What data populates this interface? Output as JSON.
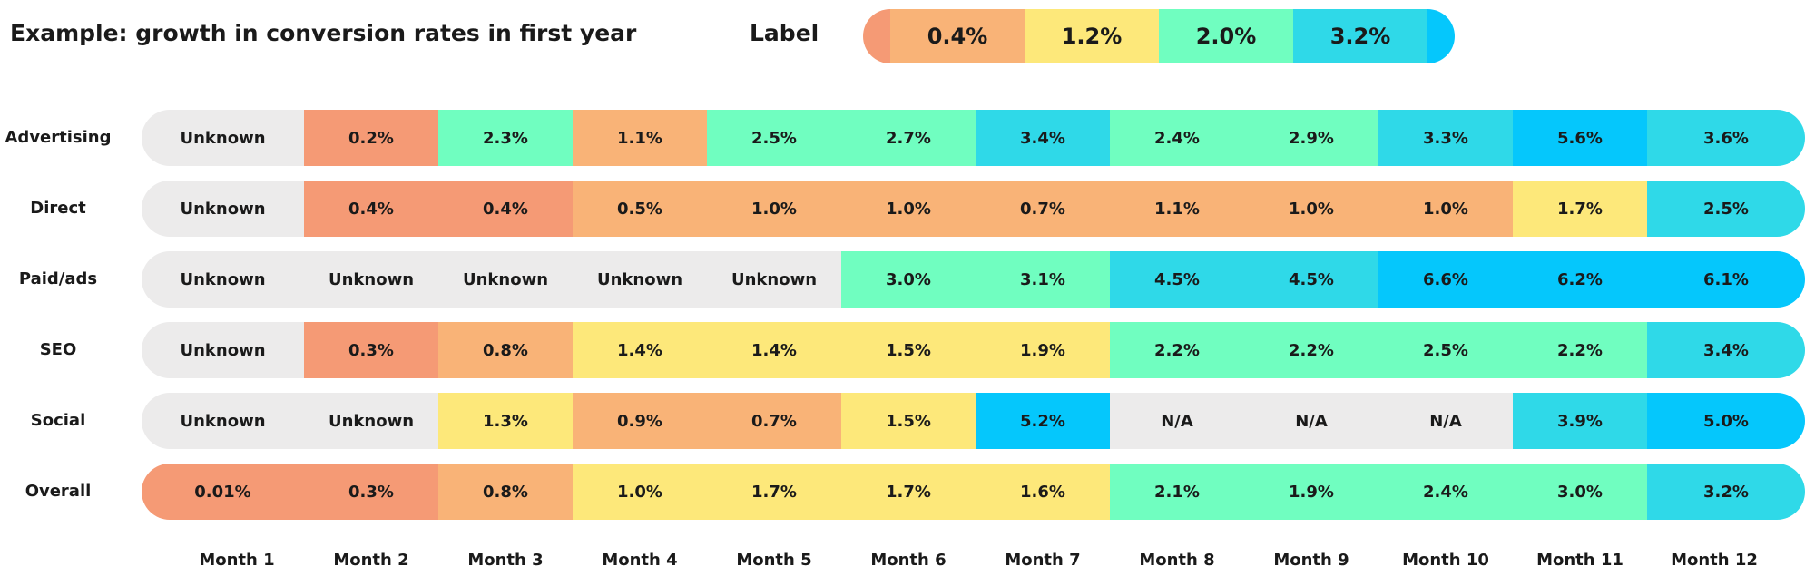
{
  "title": "Example: growth in conversion rates in first year",
  "legend": {
    "label": "Label",
    "items": [
      "0.4%",
      "1.2%",
      "2.0%",
      "3.2%"
    ]
  },
  "colors": {
    "unknown": "#ecebeb",
    "salmon": "#f59a75",
    "orange": "#f9b377",
    "yellow": "#fde87a",
    "mint": "#70fec0",
    "cyan": "#2fd9e8",
    "blue": "#05c7fc"
  },
  "chart_data": {
    "type": "heatmap",
    "title": "Example: growth in conversion rates in first year",
    "x_categories": [
      "Month 1",
      "Month 2",
      "Month 3",
      "Month 4",
      "Month 5",
      "Month 6",
      "Month 7",
      "Month 8",
      "Month 9",
      "Month 10",
      "Month 11",
      "Month 12"
    ],
    "legend_thresholds": [
      "0.4%",
      "1.2%",
      "2.0%",
      "3.2%"
    ],
    "rows": [
      {
        "name": "Advertising",
        "values": [
          "Unknown",
          "0.2%",
          "2.3%",
          "1.1%",
          "2.5%",
          "2.7%",
          "3.4%",
          "2.4%",
          "2.9%",
          "3.3%",
          "5.6%",
          "3.6%"
        ],
        "colors": [
          "unknown",
          "salmon",
          "mint",
          "orange",
          "mint",
          "mint",
          "cyan",
          "mint",
          "mint",
          "cyan",
          "blue",
          "cyan"
        ]
      },
      {
        "name": "Direct",
        "values": [
          "Unknown",
          "0.4%",
          "0.4%",
          "0.5%",
          "1.0%",
          "1.0%",
          "0.7%",
          "1.1%",
          "1.0%",
          "1.0%",
          "1.7%",
          "2.5%"
        ],
        "colors": [
          "unknown",
          "salmon",
          "salmon",
          "orange",
          "orange",
          "orange",
          "orange",
          "orange",
          "orange",
          "orange",
          "yellow",
          "cyan"
        ]
      },
      {
        "name": "Paid/ads",
        "values": [
          "Unknown",
          "Unknown",
          "Unknown",
          "Unknown",
          "Unknown",
          "3.0%",
          "3.1%",
          "4.5%",
          "4.5%",
          "6.6%",
          "6.2%",
          "6.1%"
        ],
        "colors": [
          "unknown",
          "unknown",
          "unknown",
          "unknown",
          "unknown",
          "mint",
          "mint",
          "cyan",
          "cyan",
          "blue",
          "blue",
          "blue"
        ]
      },
      {
        "name": "SEO",
        "values": [
          "Unknown",
          "0.3%",
          "0.8%",
          "1.4%",
          "1.4%",
          "1.5%",
          "1.9%",
          "2.2%",
          "2.2%",
          "2.5%",
          "2.2%",
          "3.4%"
        ],
        "colors": [
          "unknown",
          "salmon",
          "orange",
          "yellow",
          "yellow",
          "yellow",
          "yellow",
          "mint",
          "mint",
          "mint",
          "mint",
          "cyan"
        ]
      },
      {
        "name": "Social",
        "values": [
          "Unknown",
          "Unknown",
          "1.3%",
          "0.9%",
          "0.7%",
          "1.5%",
          "5.2%",
          "N/A",
          "N/A",
          "N/A",
          "3.9%",
          "5.0%"
        ],
        "colors": [
          "unknown",
          "unknown",
          "yellow",
          "orange",
          "orange",
          "yellow",
          "blue",
          "unknown",
          "unknown",
          "unknown",
          "cyan",
          "blue"
        ]
      },
      {
        "name": "Overall",
        "values": [
          "0.01%",
          "0.3%",
          "0.8%",
          "1.0%",
          "1.7%",
          "1.7%",
          "1.6%",
          "2.1%",
          "1.9%",
          "2.4%",
          "3.0%",
          "3.2%"
        ],
        "colors": [
          "salmon",
          "salmon",
          "orange",
          "yellow",
          "yellow",
          "yellow",
          "yellow",
          "mint",
          "mint",
          "mint",
          "mint",
          "cyan"
        ]
      }
    ]
  }
}
